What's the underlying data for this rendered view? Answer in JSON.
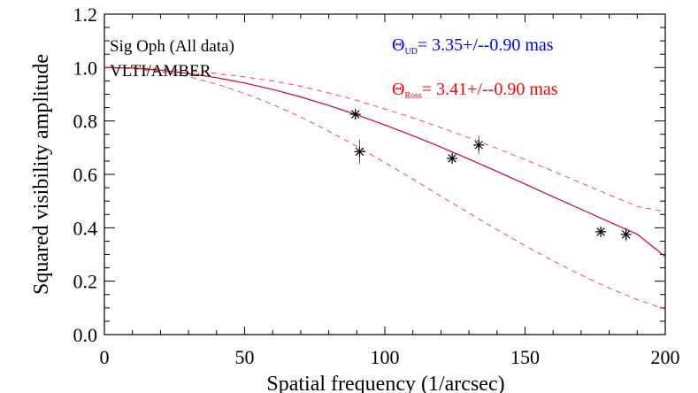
{
  "chart_data": {
    "type": "scatter",
    "title": "",
    "xlabel": "Spatial frequency (1/arcsec)",
    "ylabel": "Squared visibility amplitude",
    "xlim": [
      0,
      200
    ],
    "ylim": [
      0.0,
      1.2
    ],
    "xticks": [
      0,
      50,
      100,
      150,
      200
    ],
    "yticks": [
      0.0,
      0.2,
      0.4,
      0.6,
      0.8,
      1.0,
      1.2
    ],
    "xtick_labels": [
      "0",
      "50",
      "100",
      "150",
      "200"
    ],
    "ytick_labels": [
      "0.0",
      "0.2",
      "0.4",
      "0.6",
      "0.8",
      "1.0",
      "1.2"
    ],
    "grid": false,
    "annotations": {
      "target": "Sig Oph (All data)",
      "instrument": "VLTI/AMBER",
      "ud_symbol": "Θ",
      "ud_subscript": "UD",
      "ud_text": "= 3.35+/--0.90 mas",
      "ross_symbol": "Θ",
      "ross_subscript": "Ross",
      "ross_text": "= 3.41+/--0.90 mas"
    },
    "colors": {
      "ud": "#0000ff",
      "ross": "#ff0000",
      "model": "#cc0033",
      "bounds": "#ff4444",
      "points": "#000000"
    },
    "points": [
      {
        "x": 89.5,
        "y": 0.825,
        "err": 0.015
      },
      {
        "x": 91.0,
        "y": 0.685,
        "err": 0.045
      },
      {
        "x": 124.0,
        "y": 0.66,
        "err": 0.015
      },
      {
        "x": 133.5,
        "y": 0.71,
        "err": 0.035
      },
      {
        "x": 177.0,
        "y": 0.385,
        "err": 0.012
      },
      {
        "x": 186.0,
        "y": 0.375,
        "err": 0.025
      }
    ],
    "model_curve": {
      "x": [
        0,
        10,
        20,
        30,
        40,
        50,
        60,
        70,
        80,
        90,
        100,
        110,
        120,
        130,
        140,
        150,
        160,
        170,
        180,
        190,
        200
      ],
      "y": [
        1.0,
        0.998,
        0.99,
        0.978,
        0.962,
        0.942,
        0.918,
        0.89,
        0.858,
        0.823,
        0.785,
        0.745,
        0.702,
        0.657,
        0.611,
        0.564,
        0.516,
        0.469,
        0.422,
        0.376,
        0.292
      ]
    },
    "upper_bound": {
      "x": [
        0,
        10,
        20,
        30,
        40,
        50,
        60,
        70,
        80,
        90,
        100,
        110,
        120,
        130,
        140,
        150,
        160,
        170,
        180,
        190,
        200
      ],
      "y": [
        1.0,
        0.999,
        0.995,
        0.988,
        0.978,
        0.965,
        0.95,
        0.93,
        0.905,
        0.877,
        0.845,
        0.812,
        0.775,
        0.737,
        0.697,
        0.655,
        0.612,
        0.568,
        0.524,
        0.48,
        0.46
      ]
    },
    "lower_bound": {
      "x": [
        0,
        10,
        20,
        30,
        40,
        50,
        60,
        70,
        80,
        90,
        100,
        110,
        120,
        130,
        140,
        150,
        160,
        170,
        180,
        190,
        200
      ],
      "y": [
        1.0,
        0.996,
        0.985,
        0.966,
        0.938,
        0.903,
        0.862,
        0.815,
        0.762,
        0.705,
        0.644,
        0.582,
        0.518,
        0.455,
        0.393,
        0.333,
        0.276,
        0.223,
        0.174,
        0.131,
        0.095
      ]
    }
  }
}
